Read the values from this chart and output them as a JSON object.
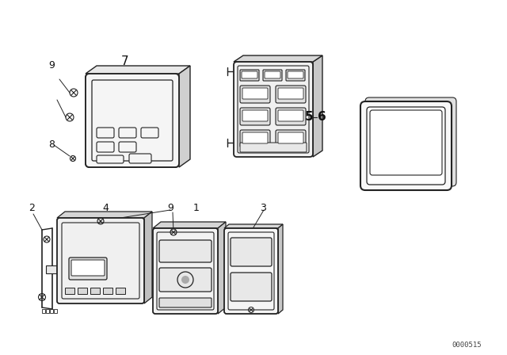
{
  "bg_color": "#ffffff",
  "line_color": "#222222",
  "text_color": "#111111",
  "diagram_code": "0000515",
  "figsize": [
    6.4,
    4.48
  ],
  "dpi": 100,
  "label_positions": [
    [
      "9",
      65,
      83,
      9,
      "normal"
    ],
    [
      "7",
      158,
      77,
      11,
      "normal"
    ],
    [
      "8",
      65,
      183,
      9,
      "normal"
    ],
    [
      "5",
      390,
      148,
      11,
      "bold"
    ],
    [
      "6",
      406,
      148,
      11,
      "bold"
    ],
    [
      "2",
      40,
      262,
      9,
      "normal"
    ],
    [
      "4",
      133,
      262,
      9,
      "normal"
    ],
    [
      "9",
      215,
      262,
      9,
      "normal"
    ],
    [
      "1",
      248,
      262,
      9,
      "normal"
    ],
    [
      "3",
      332,
      262,
      9,
      "normal"
    ]
  ]
}
